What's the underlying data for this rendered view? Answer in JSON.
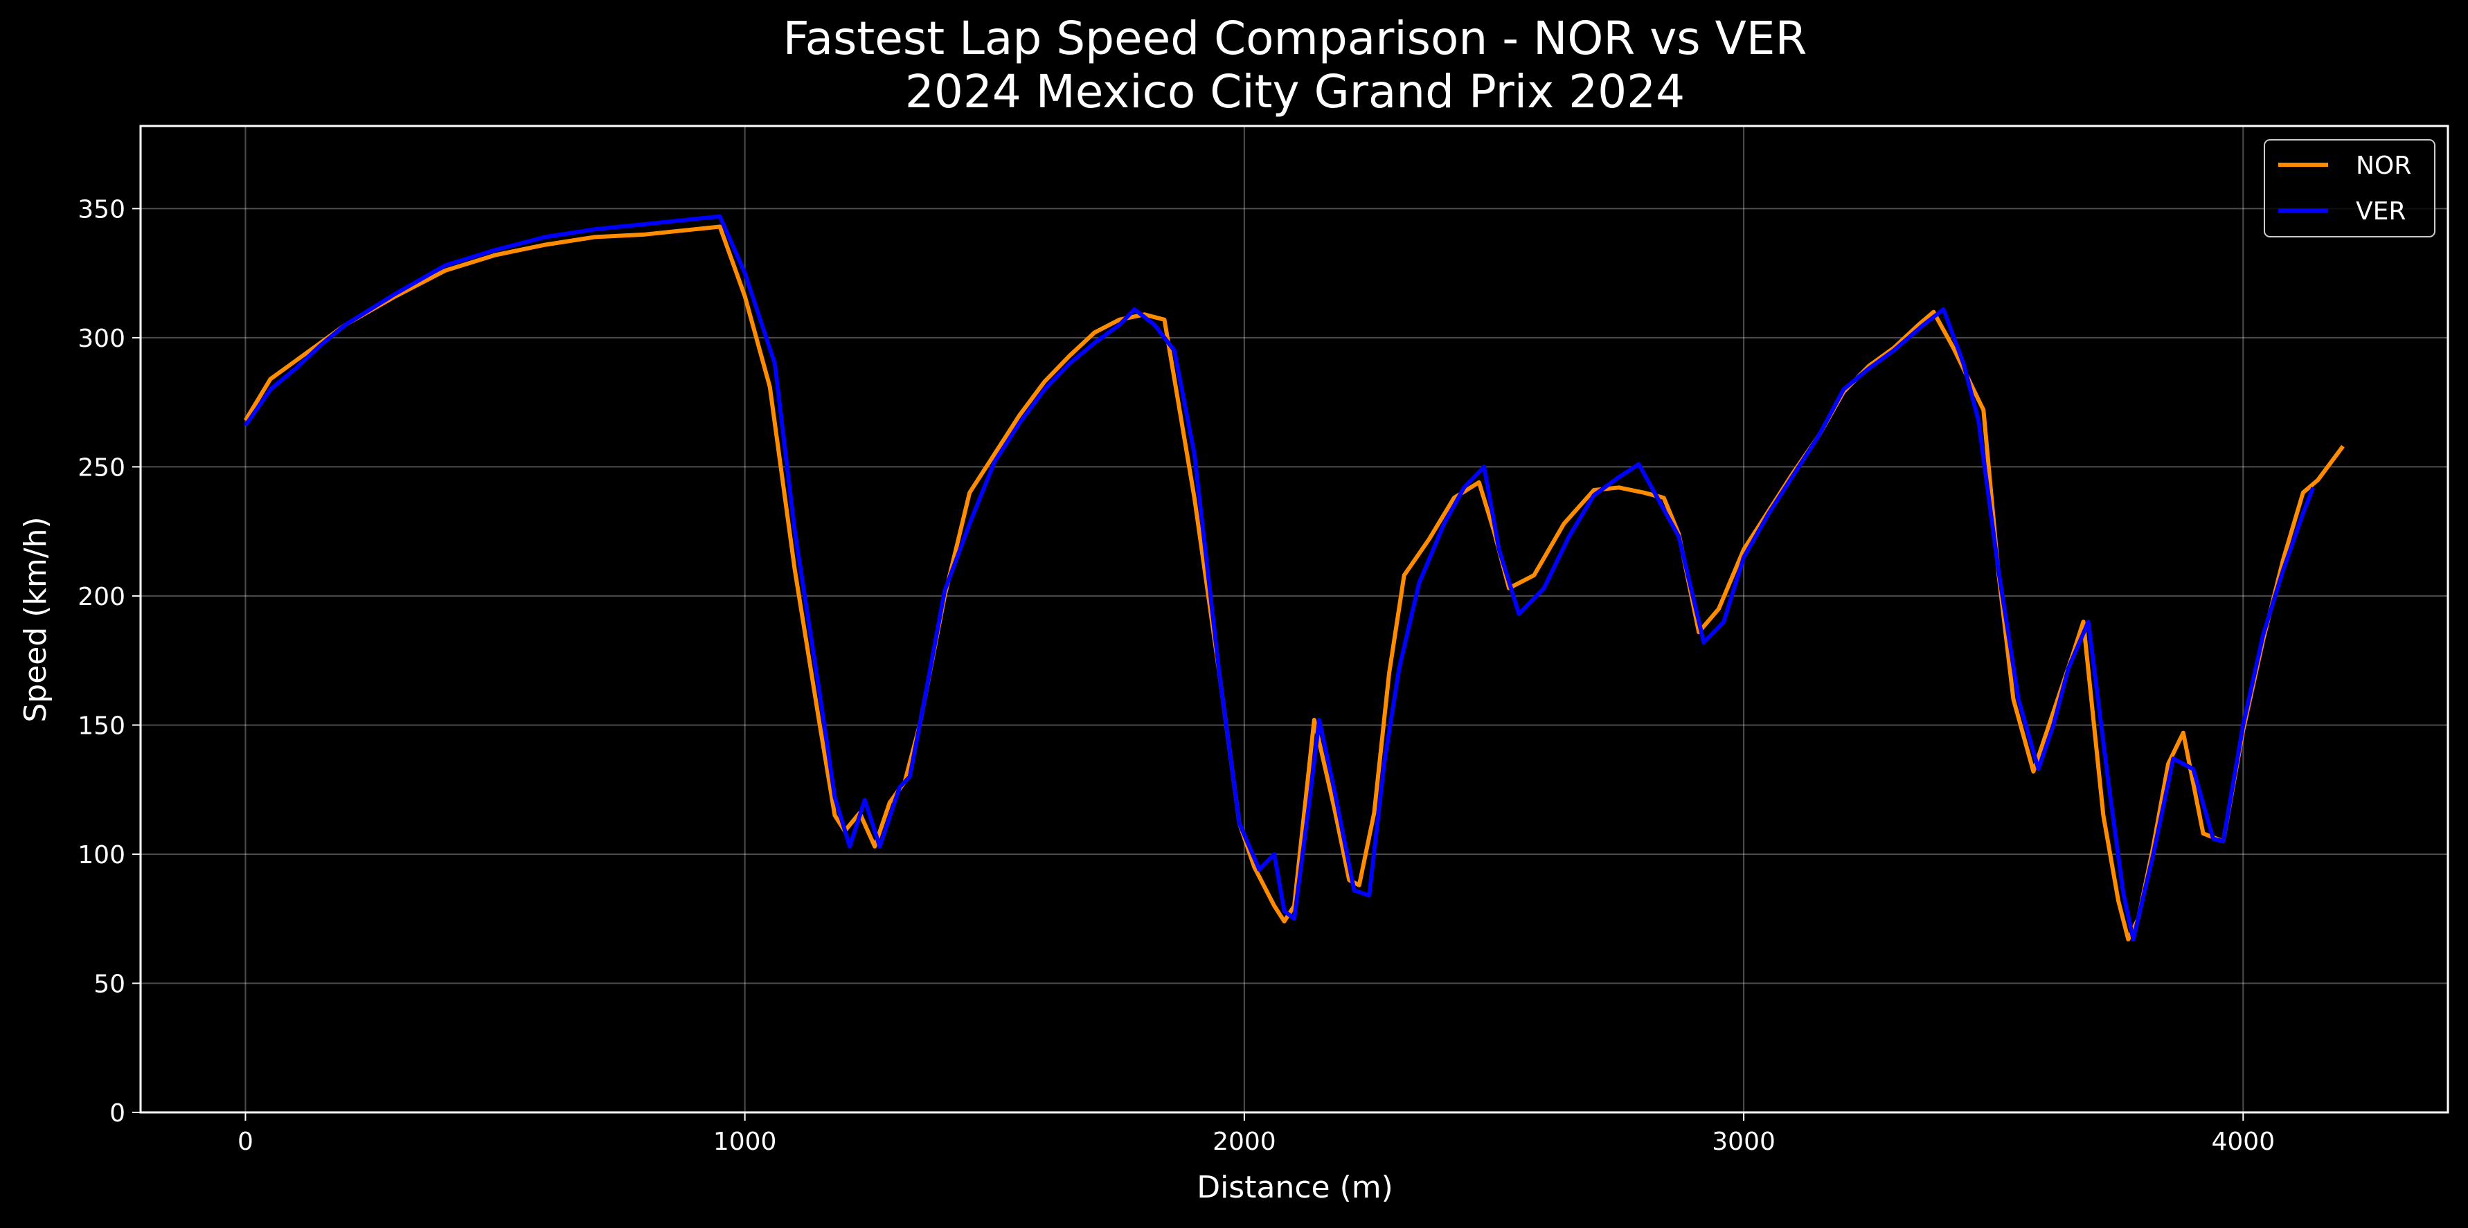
{
  "chart_data": {
    "type": "line",
    "title": "Fastest Lap Speed Comparison - NOR vs VER",
    "subtitle": "2024 Mexico City Grand Prix 2024",
    "xlabel": "Distance (m)",
    "ylabel": "Speed (km/h)",
    "xlim": [
      -210,
      4410
    ],
    "ylim": [
      0,
      382
    ],
    "xticks": [
      0,
      1000,
      2000,
      3000,
      4000
    ],
    "yticks": [
      0,
      50,
      100,
      150,
      200,
      250,
      300,
      350
    ],
    "grid": true,
    "legend_position": "top-right",
    "background": "#000000",
    "series": [
      {
        "name": "NOR",
        "color": "#ff8c00",
        "points": [
          [
            0,
            268
          ],
          [
            50,
            284
          ],
          [
            100,
            291
          ],
          [
            150,
            298
          ],
          [
            200,
            305
          ],
          [
            300,
            316
          ],
          [
            400,
            326
          ],
          [
            500,
            332
          ],
          [
            600,
            336
          ],
          [
            700,
            339
          ],
          [
            800,
            340
          ],
          [
            900,
            342
          ],
          [
            950,
            343
          ],
          [
            1000,
            316
          ],
          [
            1050,
            281
          ],
          [
            1100,
            210
          ],
          [
            1150,
            150
          ],
          [
            1180,
            115
          ],
          [
            1200,
            109
          ],
          [
            1230,
            116
          ],
          [
            1260,
            103
          ],
          [
            1290,
            120
          ],
          [
            1320,
            128
          ],
          [
            1350,
            150
          ],
          [
            1400,
            200
          ],
          [
            1450,
            240
          ],
          [
            1500,
            255
          ],
          [
            1550,
            270
          ],
          [
            1600,
            283
          ],
          [
            1650,
            293
          ],
          [
            1700,
            302
          ],
          [
            1750,
            307
          ],
          [
            1800,
            309
          ],
          [
            1840,
            307
          ],
          [
            1900,
            238
          ],
          [
            1950,
            170
          ],
          [
            1990,
            112
          ],
          [
            2020,
            95
          ],
          [
            2060,
            80
          ],
          [
            2080,
            74
          ],
          [
            2100,
            80
          ],
          [
            2140,
            152
          ],
          [
            2180,
            118
          ],
          [
            2210,
            90
          ],
          [
            2230,
            88
          ],
          [
            2260,
            116
          ],
          [
            2290,
            170
          ],
          [
            2320,
            208
          ],
          [
            2370,
            222
          ],
          [
            2420,
            238
          ],
          [
            2470,
            244
          ],
          [
            2500,
            225
          ],
          [
            2530,
            203
          ],
          [
            2580,
            208
          ],
          [
            2640,
            228
          ],
          [
            2700,
            241
          ],
          [
            2750,
            242
          ],
          [
            2800,
            240
          ],
          [
            2840,
            238
          ],
          [
            2870,
            224
          ],
          [
            2910,
            186
          ],
          [
            2950,
            195
          ],
          [
            3000,
            218
          ],
          [
            3050,
            233
          ],
          [
            3100,
            248
          ],
          [
            3150,
            262
          ],
          [
            3200,
            279
          ],
          [
            3250,
            289
          ],
          [
            3300,
            296
          ],
          [
            3350,
            305
          ],
          [
            3380,
            310
          ],
          [
            3420,
            296
          ],
          [
            3460,
            280
          ],
          [
            3480,
            272
          ],
          [
            3510,
            209
          ],
          [
            3540,
            160
          ],
          [
            3580,
            132
          ],
          [
            3620,
            155
          ],
          [
            3660,
            178
          ],
          [
            3680,
            190
          ],
          [
            3720,
            115
          ],
          [
            3750,
            82
          ],
          [
            3770,
            67
          ],
          [
            3790,
            75
          ],
          [
            3820,
            103
          ],
          [
            3850,
            135
          ],
          [
            3880,
            147
          ],
          [
            3920,
            108
          ],
          [
            3960,
            105
          ],
          [
            4000,
            148
          ],
          [
            4040,
            183
          ],
          [
            4080,
            214
          ],
          [
            4120,
            240
          ],
          [
            4150,
            245
          ],
          [
            4200,
            258
          ]
        ]
      },
      {
        "name": "VER",
        "color": "#0000ff",
        "points": [
          [
            0,
            266
          ],
          [
            50,
            280
          ],
          [
            100,
            288
          ],
          [
            150,
            297
          ],
          [
            200,
            305
          ],
          [
            300,
            317
          ],
          [
            400,
            328
          ],
          [
            500,
            334
          ],
          [
            600,
            339
          ],
          [
            700,
            342
          ],
          [
            800,
            344
          ],
          [
            900,
            346
          ],
          [
            950,
            347
          ],
          [
            1000,
            325
          ],
          [
            1060,
            290
          ],
          [
            1100,
            225
          ],
          [
            1150,
            162
          ],
          [
            1180,
            122
          ],
          [
            1210,
            103
          ],
          [
            1240,
            121
          ],
          [
            1270,
            103
          ],
          [
            1310,
            126
          ],
          [
            1330,
            130
          ],
          [
            1360,
            160
          ],
          [
            1400,
            202
          ],
          [
            1450,
            228
          ],
          [
            1500,
            252
          ],
          [
            1550,
            267
          ],
          [
            1600,
            280
          ],
          [
            1650,
            290
          ],
          [
            1700,
            298
          ],
          [
            1750,
            305
          ],
          [
            1780,
            311
          ],
          [
            1820,
            305
          ],
          [
            1860,
            295
          ],
          [
            1900,
            255
          ],
          [
            1950,
            170
          ],
          [
            1990,
            112
          ],
          [
            2030,
            94
          ],
          [
            2060,
            100
          ],
          [
            2080,
            78
          ],
          [
            2100,
            75
          ],
          [
            2130,
            120
          ],
          [
            2150,
            152
          ],
          [
            2180,
            125
          ],
          [
            2220,
            86
          ],
          [
            2250,
            84
          ],
          [
            2280,
            135
          ],
          [
            2310,
            172
          ],
          [
            2350,
            205
          ],
          [
            2400,
            228
          ],
          [
            2440,
            242
          ],
          [
            2480,
            250
          ],
          [
            2510,
            218
          ],
          [
            2550,
            193
          ],
          [
            2600,
            203
          ],
          [
            2650,
            223
          ],
          [
            2700,
            239
          ],
          [
            2750,
            246
          ],
          [
            2790,
            251
          ],
          [
            2830,
            237
          ],
          [
            2870,
            223
          ],
          [
            2920,
            182
          ],
          [
            2960,
            190
          ],
          [
            3000,
            215
          ],
          [
            3050,
            232
          ],
          [
            3100,
            247
          ],
          [
            3150,
            262
          ],
          [
            3200,
            280
          ],
          [
            3250,
            288
          ],
          [
            3300,
            295
          ],
          [
            3360,
            305
          ],
          [
            3400,
            311
          ],
          [
            3440,
            290
          ],
          [
            3470,
            268
          ],
          [
            3510,
            210
          ],
          [
            3550,
            160
          ],
          [
            3590,
            133
          ],
          [
            3620,
            150
          ],
          [
            3650,
            172
          ],
          [
            3690,
            190
          ],
          [
            3730,
            128
          ],
          [
            3760,
            85
          ],
          [
            3780,
            67
          ],
          [
            3820,
            100
          ],
          [
            3860,
            137
          ],
          [
            3900,
            133
          ],
          [
            3940,
            106
          ],
          [
            3960,
            105
          ],
          [
            4000,
            150
          ],
          [
            4040,
            185
          ],
          [
            4080,
            210
          ],
          [
            4120,
            232
          ],
          [
            4140,
            242
          ]
        ]
      }
    ]
  }
}
